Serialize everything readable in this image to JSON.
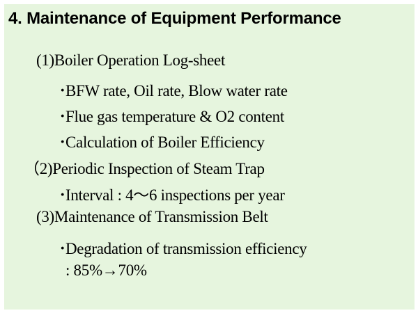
{
  "title": "4.  Maintenance of Equipment Performance",
  "sections": [
    {
      "heading": "(1)Boiler Operation Log-sheet",
      "bullets": [
        "BFW rate, Oil rate, Blow water rate",
        "Flue gas temperature & O2 content",
        "Calculation of Boiler Efficiency"
      ]
    },
    {
      "heading": "（2)Periodic Inspection of Steam Trap",
      "bullets": [
        "Interval : 4～6 inspections per year"
      ]
    },
    {
      "heading": "(3)Maintenance of Transmission Belt",
      "bullets": [
        "Degradation of transmission efficiency"
      ],
      "continuation": ": 85%→70%"
    }
  ],
  "bullet_char": "･",
  "colors": {
    "background": "#e6f5de",
    "border": "#ffffff",
    "text": "#000000"
  }
}
